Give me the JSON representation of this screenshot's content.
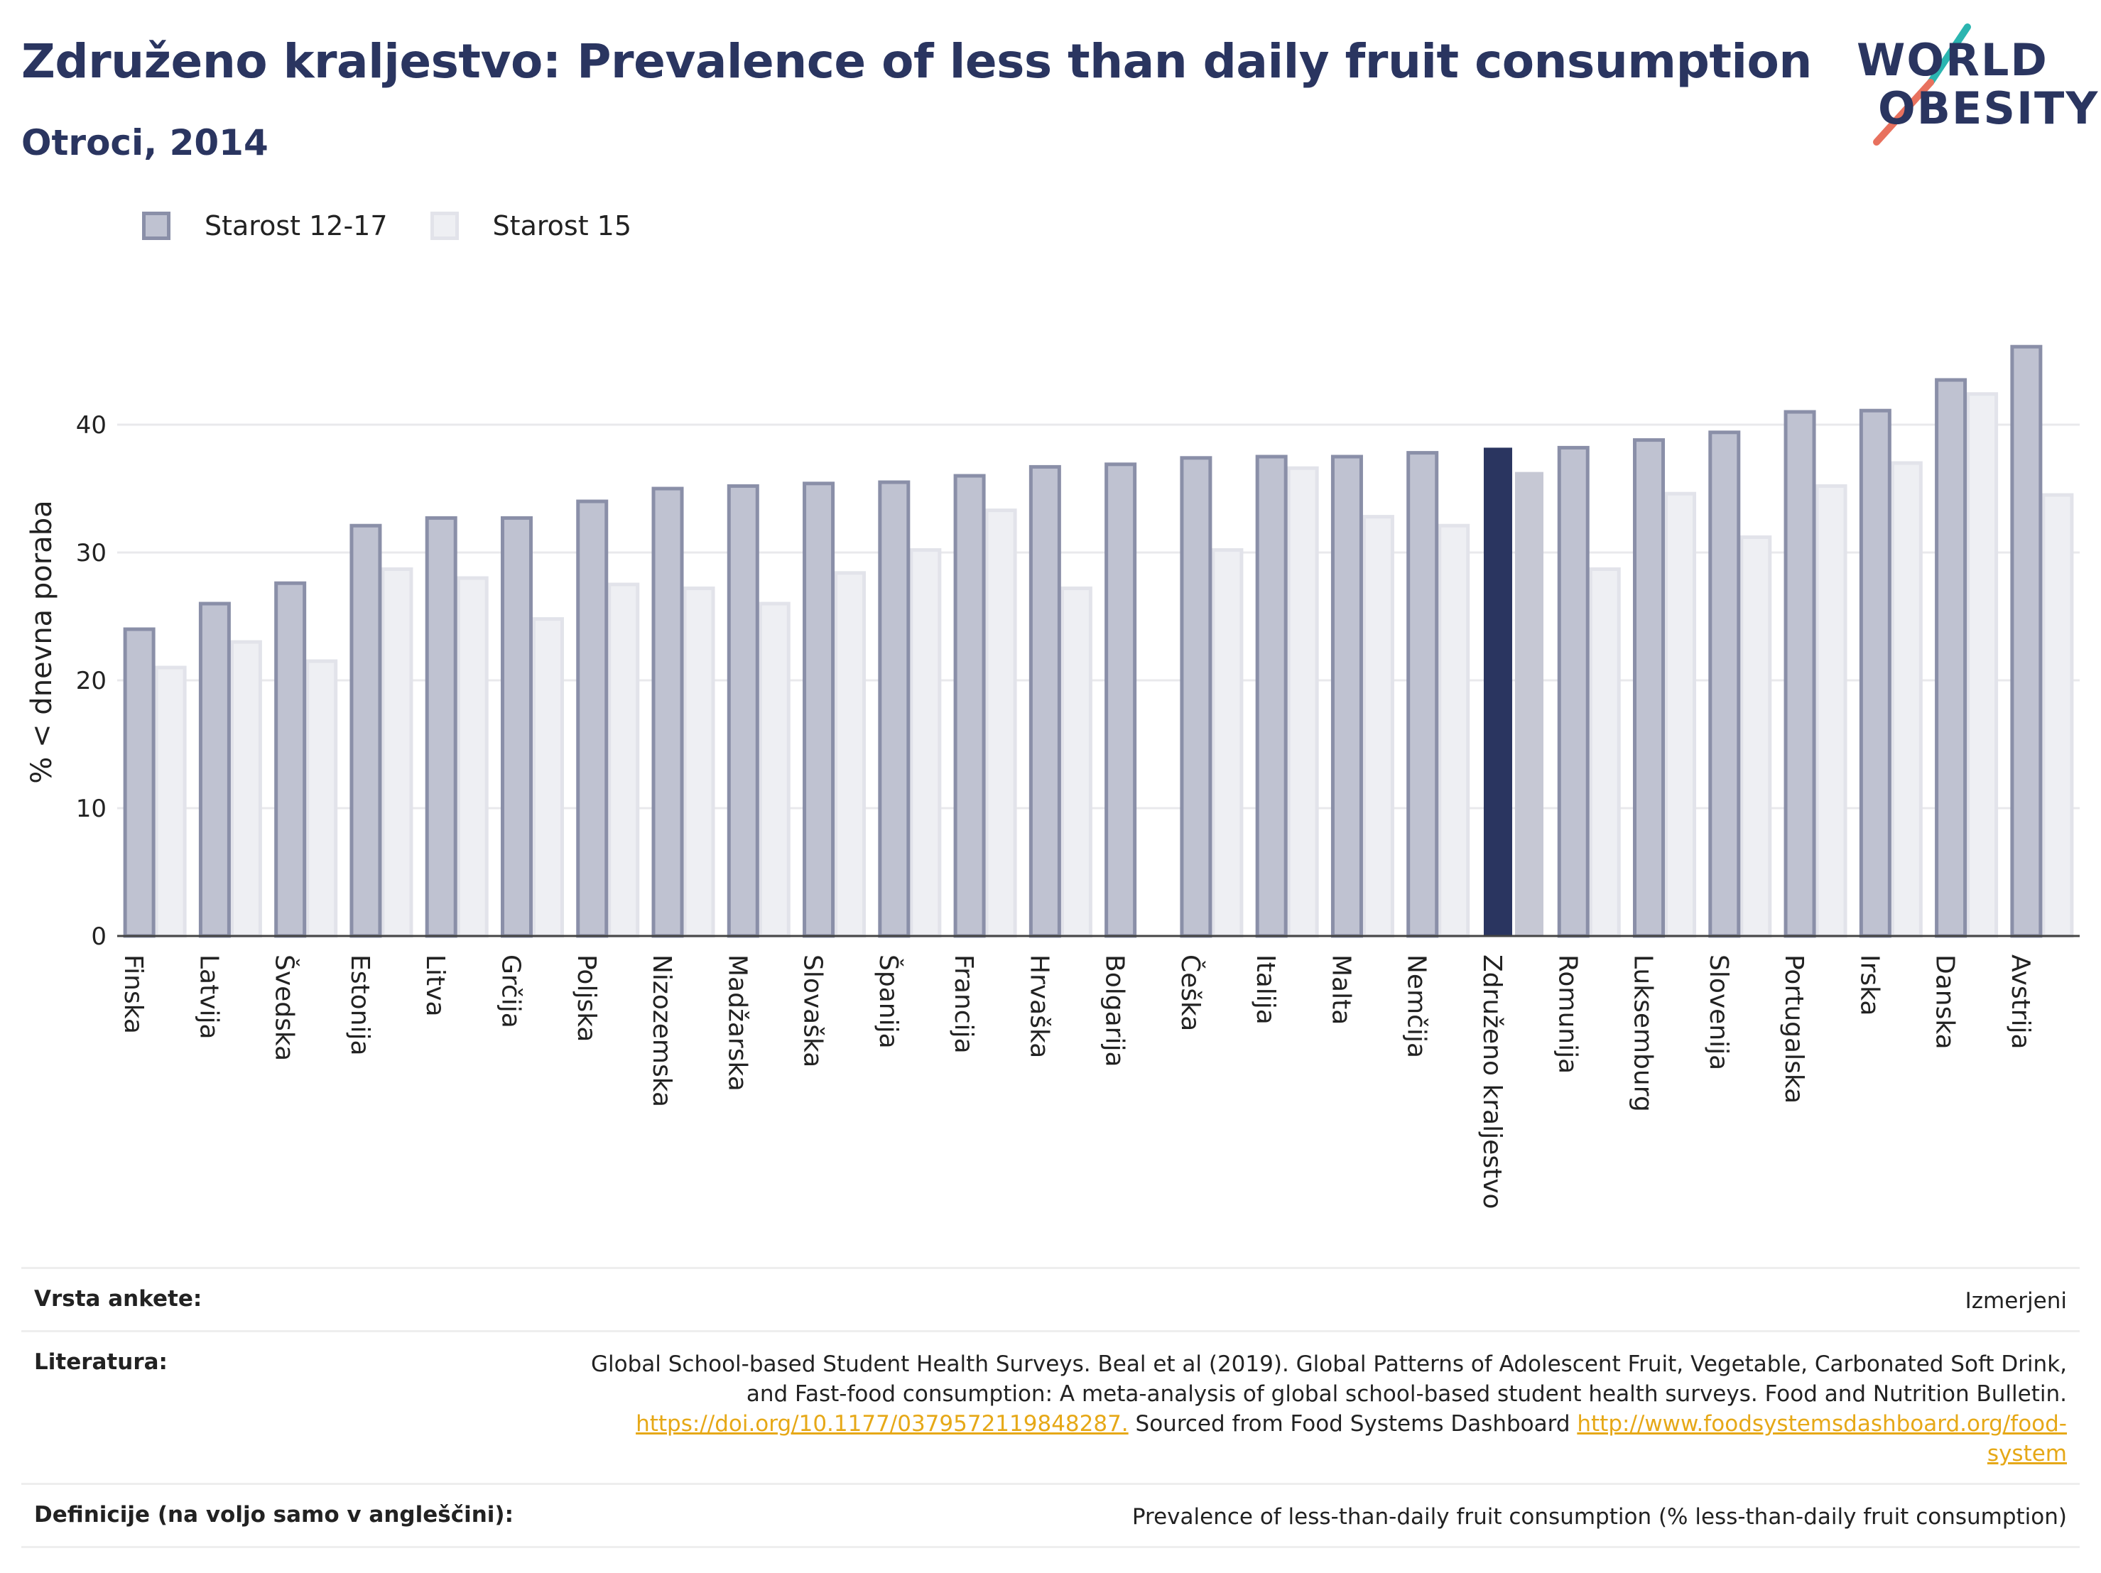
{
  "header": {
    "title": "Združeno kraljestvo: Prevalence of less than daily fruit consumption",
    "subtitle": "Otroci, 2014"
  },
  "logo": {
    "line1": "WORLD",
    "line2": "OBESITY",
    "colors": {
      "text": "#2a3560",
      "slash_top": "#2bb5b0",
      "slash_bottom": "#e8715e"
    }
  },
  "chart_data": {
    "type": "bar",
    "ylabel": "% < dnevna poraba",
    "ylim": [
      0,
      46
    ],
    "yticks": [
      0,
      10,
      20,
      30,
      40
    ],
    "grid": true,
    "legend_position": "top-left",
    "highlight_category": "Združeno kraljestvo",
    "colors": {
      "series1_fill": "#bfc2d1",
      "series1_border": "#8a8fa8",
      "series2_fill": "#eeeff3",
      "series2_border": "#e2e3ea",
      "highlight1": "#2a3560",
      "highlight2": "#c6c8d4"
    },
    "categories": [
      "Finska",
      "Latvija",
      "Švedska",
      "Estonija",
      "Litva",
      "Grčija",
      "Poljska",
      "Nizozemska",
      "Madžarska",
      "Slovaška",
      "Španija",
      "Francija",
      "Hrvaška",
      "Bolgarija",
      "Češka",
      "Italija",
      "Malta",
      "Nemčija",
      "Združeno kraljestvo",
      "Romunija",
      "Luksemburg",
      "Slovenija",
      "Portugalska",
      "Irska",
      "Danska",
      "Avstrija"
    ],
    "series": [
      {
        "name": "Starost 12-17",
        "values": [
          24.0,
          26.0,
          27.6,
          32.1,
          32.7,
          32.7,
          34.0,
          35.0,
          35.2,
          35.4,
          35.5,
          36.0,
          36.7,
          36.9,
          37.4,
          37.5,
          37.5,
          37.8,
          38.2,
          38.2,
          38.8,
          39.4,
          41.0,
          41.1,
          43.5,
          46.1
        ]
      },
      {
        "name": "Starost 15",
        "values": [
          21.0,
          23.0,
          21.5,
          28.7,
          28.0,
          24.8,
          27.5,
          27.2,
          26.0,
          28.4,
          30.2,
          33.3,
          27.2,
          null,
          30.2,
          36.6,
          32.8,
          32.1,
          36.3,
          28.7,
          34.6,
          31.2,
          35.2,
          37.0,
          42.4,
          34.5
        ]
      }
    ]
  },
  "meta": {
    "survey_type_label": "Vrsta ankete:",
    "survey_type_value": "Izmerjeni",
    "literature_label": "Literatura:",
    "literature_text_1": "Global School-based Student Health Surveys. Beal et al (2019). Global Patterns of Adolescent Fruit, Vegetable, Carbonated Soft Drink,",
    "literature_text_2": "and Fast-food consumption: A meta-analysis of global school-based student health surveys. Food and Nutrition Bulletin.",
    "literature_link_1": "https://doi.org/10.1177/0379572119848287.",
    "literature_text_3": " Sourced from Food Systems Dashboard ",
    "literature_link_2a": "http://www.foodsystemsdashboard.org/food-",
    "literature_link_2b": "system",
    "definitions_label": "Definicije (na voljo samo v angleščini):",
    "definitions_value": "Prevalence of less-than-daily fruit consumption (% less-than-daily fruit consumption)"
  }
}
